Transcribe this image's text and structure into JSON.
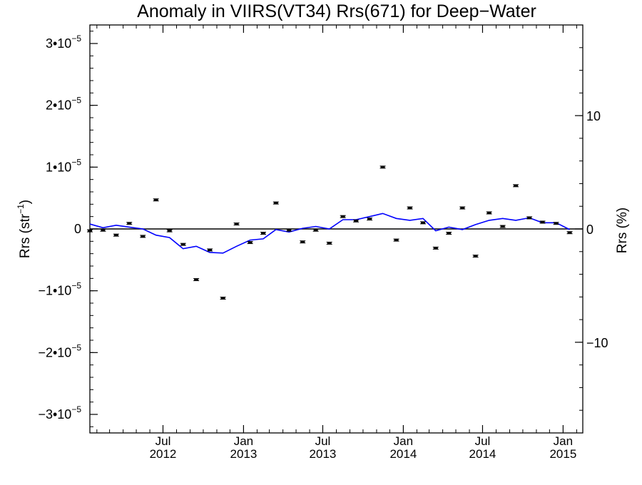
{
  "chart_data": {
    "type": "scatter",
    "title": "Anomaly in VIIRS(VT34) Rrs(671) for Deep−Water",
    "ylabel_left": {
      "base": "Rrs (str",
      "sup": "−1",
      "close": ")"
    },
    "ylabel_right": "Rrs (%)",
    "ylim": [
      -3.3e-05,
      3.3e-05
    ],
    "ylim_right": [
      -18,
      18
    ],
    "x_axis": {
      "start": "2012-01-16",
      "end": "2015-02-15",
      "major_ticks": [
        {
          "date": "2012-07-01",
          "month": "Jul",
          "year": "2012"
        },
        {
          "date": "2013-01-01",
          "month": "Jan",
          "year": "2013"
        },
        {
          "date": "2013-07-01",
          "month": "Jul",
          "year": "2013"
        },
        {
          "date": "2014-01-01",
          "month": "Jan",
          "year": "2014"
        },
        {
          "date": "2014-07-01",
          "month": "Jul",
          "year": "2014"
        },
        {
          "date": "2015-01-01",
          "month": "Jan",
          "year": "2015"
        }
      ],
      "minor_tick_dates": [
        "2012-02-01",
        "2012-03-01",
        "2012-04-01",
        "2012-05-01",
        "2012-06-01",
        "2012-08-01",
        "2012-09-01",
        "2012-10-01",
        "2012-11-01",
        "2012-12-01",
        "2013-02-01",
        "2013-03-01",
        "2013-04-01",
        "2013-05-01",
        "2013-06-01",
        "2013-08-01",
        "2013-09-01",
        "2013-10-01",
        "2013-11-01",
        "2013-12-01",
        "2014-02-01",
        "2014-03-01",
        "2014-04-01",
        "2014-05-01",
        "2014-06-01",
        "2014-08-01",
        "2014-09-01",
        "2014-10-01",
        "2014-11-01",
        "2014-12-01",
        "2015-02-01"
      ]
    },
    "y_ticks_left": [
      {
        "value": 3e-05,
        "mant": "3•10",
        "exp": "−5"
      },
      {
        "value": 2e-05,
        "mant": "2•10",
        "exp": "−5"
      },
      {
        "value": 1e-05,
        "mant": "1•10",
        "exp": "−5"
      },
      {
        "value": 0,
        "mant": "0",
        "exp": ""
      },
      {
        "value": -1e-05,
        "mant": "−1•10",
        "exp": "−5"
      },
      {
        "value": -2e-05,
        "mant": "−2•10",
        "exp": "−5"
      },
      {
        "value": -3e-05,
        "mant": "−3•10",
        "exp": "−5"
      }
    ],
    "y_ticks_right": [
      {
        "value": 10,
        "label": "10"
      },
      {
        "value": 0,
        "label": "0"
      },
      {
        "value": -10,
        "label": "−10"
      }
    ],
    "zero_line": 0,
    "series": [
      {
        "marker": "errorbar-point",
        "color": "#000000",
        "points": [
          {
            "x": "2012-01-16",
            "y": -3e-07
          },
          {
            "x": "2012-02-15",
            "y": -2e-07
          },
          {
            "x": "2012-03-16",
            "y": -1e-06
          },
          {
            "x": "2012-04-15",
            "y": 9e-07
          },
          {
            "x": "2012-05-16",
            "y": -1.2e-06
          },
          {
            "x": "2012-06-15",
            "y": 4.7e-06
          },
          {
            "x": "2012-07-16",
            "y": -3e-07
          },
          {
            "x": "2012-08-16",
            "y": -2.5e-06
          },
          {
            "x": "2012-09-15",
            "y": -8.2e-06
          },
          {
            "x": "2012-10-16",
            "y": -3.4e-06
          },
          {
            "x": "2012-11-15",
            "y": -1.12e-05
          },
          {
            "x": "2012-12-16",
            "y": 8e-07
          },
          {
            "x": "2013-01-16",
            "y": -2.2e-06
          },
          {
            "x": "2013-02-15",
            "y": -7e-07
          },
          {
            "x": "2013-03-16",
            "y": 4.2e-06
          },
          {
            "x": "2013-04-15",
            "y": -2e-07
          },
          {
            "x": "2013-05-16",
            "y": -2.1e-06
          },
          {
            "x": "2013-06-15",
            "y": -2e-07
          },
          {
            "x": "2013-07-16",
            "y": -2.3e-06
          },
          {
            "x": "2013-08-16",
            "y": 2e-06
          },
          {
            "x": "2013-09-15",
            "y": 1.3e-06
          },
          {
            "x": "2013-10-16",
            "y": 1.6e-06
          },
          {
            "x": "2013-11-15",
            "y": 1e-05
          },
          {
            "x": "2013-12-16",
            "y": -1.8e-06
          },
          {
            "x": "2014-01-16",
            "y": 3.4e-06
          },
          {
            "x": "2014-02-15",
            "y": 1e-06
          },
          {
            "x": "2014-03-16",
            "y": -3.1e-06
          },
          {
            "x": "2014-04-15",
            "y": -7e-07
          },
          {
            "x": "2014-05-16",
            "y": 3.4e-06
          },
          {
            "x": "2014-06-15",
            "y": -4.4e-06
          },
          {
            "x": "2014-07-16",
            "y": 2.6e-06
          },
          {
            "x": "2014-08-16",
            "y": 4e-07
          },
          {
            "x": "2014-09-15",
            "y": 7e-06
          },
          {
            "x": "2014-10-16",
            "y": 1.8e-06
          },
          {
            "x": "2014-11-15",
            "y": 1.1e-06
          },
          {
            "x": "2014-12-16",
            "y": 9e-07
          },
          {
            "x": "2015-01-16",
            "y": -6e-07
          }
        ]
      },
      {
        "marker": "line",
        "color": "#0000ff",
        "points": [
          {
            "x": "2012-01-16",
            "y": 8e-07
          },
          {
            "x": "2012-02-15",
            "y": 2e-07
          },
          {
            "x": "2012-03-16",
            "y": 6e-07
          },
          {
            "x": "2012-04-15",
            "y": 3e-07
          },
          {
            "x": "2012-05-16",
            "y": 0.0
          },
          {
            "x": "2012-06-15",
            "y": -1e-06
          },
          {
            "x": "2012-07-16",
            "y": -1.4e-06
          },
          {
            "x": "2012-08-16",
            "y": -3.2e-06
          },
          {
            "x": "2012-09-15",
            "y": -2.8e-06
          },
          {
            "x": "2012-10-16",
            "y": -3.8e-06
          },
          {
            "x": "2012-11-15",
            "y": -3.9e-06
          },
          {
            "x": "2012-12-16",
            "y": -2.8e-06
          },
          {
            "x": "2013-01-16",
            "y": -1.8e-06
          },
          {
            "x": "2013-02-15",
            "y": -1.6e-06
          },
          {
            "x": "2013-03-16",
            "y": -1e-07
          },
          {
            "x": "2013-04-15",
            "y": -5e-07
          },
          {
            "x": "2013-05-16",
            "y": 1e-07
          },
          {
            "x": "2013-06-15",
            "y": 4e-07
          },
          {
            "x": "2013-07-16",
            "y": 0.0
          },
          {
            "x": "2013-08-16",
            "y": 1.5e-06
          },
          {
            "x": "2013-09-15",
            "y": 1.5e-06
          },
          {
            "x": "2013-10-16",
            "y": 2e-06
          },
          {
            "x": "2013-11-15",
            "y": 2.5e-06
          },
          {
            "x": "2013-12-16",
            "y": 1.7e-06
          },
          {
            "x": "2014-01-16",
            "y": 1.4e-06
          },
          {
            "x": "2014-02-15",
            "y": 1.7e-06
          },
          {
            "x": "2014-03-16",
            "y": -3e-07
          },
          {
            "x": "2014-04-15",
            "y": 3e-07
          },
          {
            "x": "2014-05-16",
            "y": -1e-07
          },
          {
            "x": "2014-06-15",
            "y": 7e-07
          },
          {
            "x": "2014-07-16",
            "y": 1.4e-06
          },
          {
            "x": "2014-08-16",
            "y": 1.7e-06
          },
          {
            "x": "2014-09-15",
            "y": 1.4e-06
          },
          {
            "x": "2014-10-16",
            "y": 1.8e-06
          },
          {
            "x": "2014-11-15",
            "y": 1e-06
          },
          {
            "x": "2014-12-16",
            "y": 1e-06
          },
          {
            "x": "2015-01-16",
            "y": -1e-07
          }
        ]
      }
    ]
  }
}
